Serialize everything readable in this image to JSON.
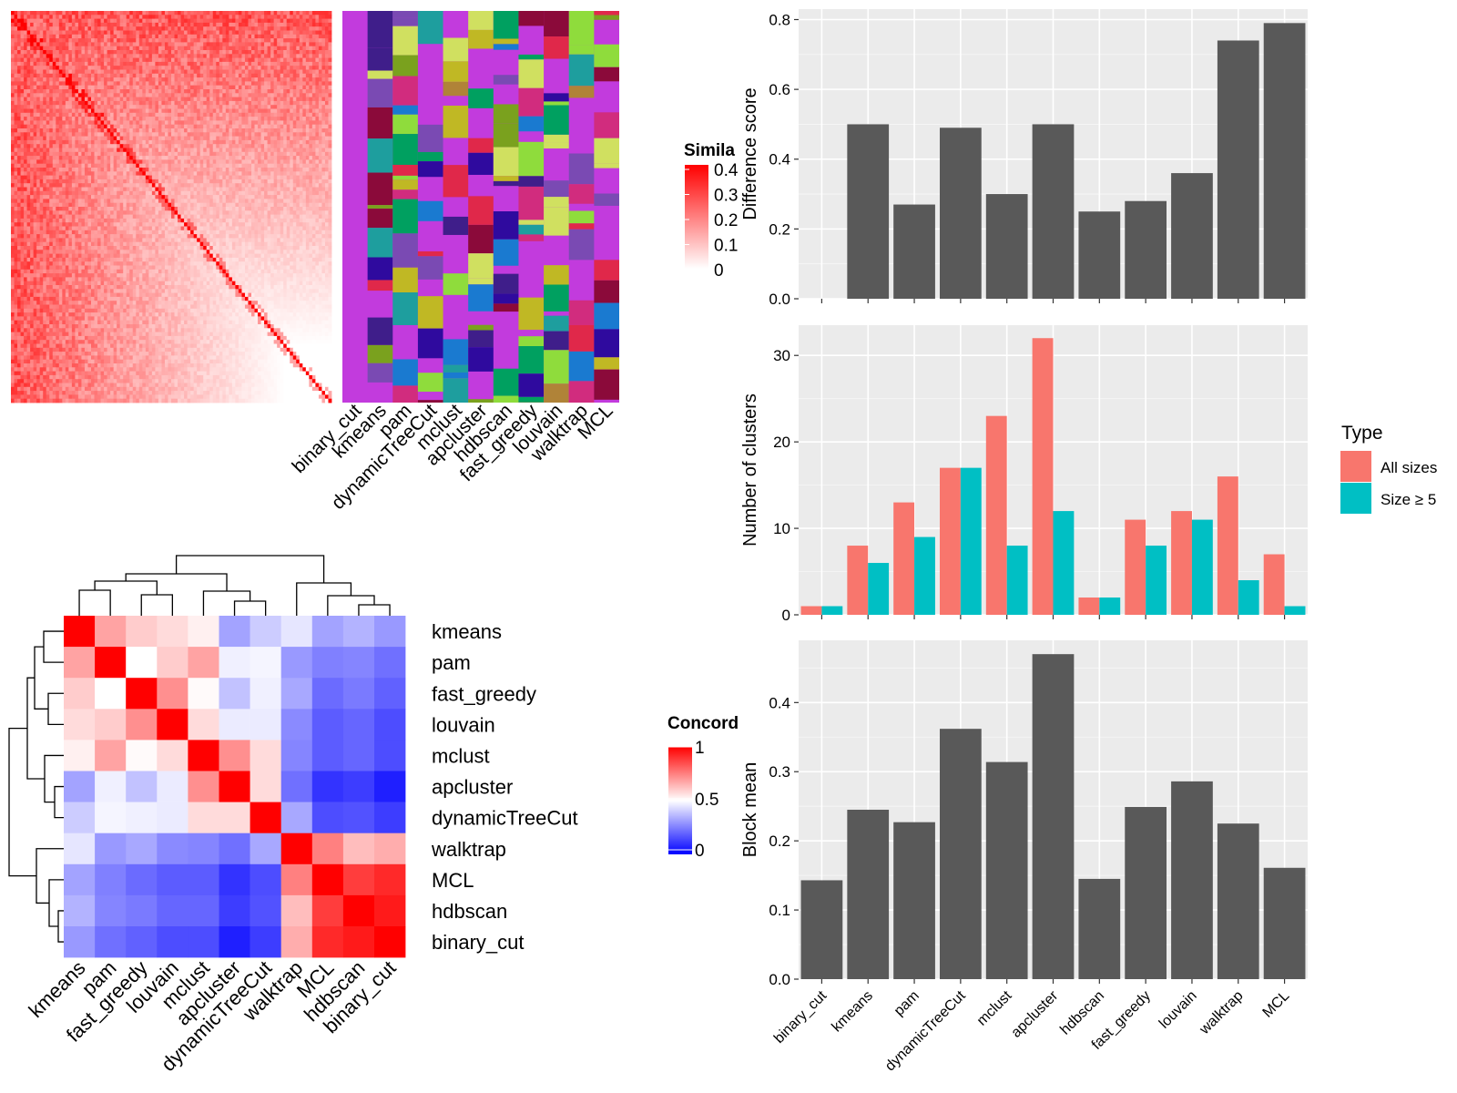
{
  "chart_data": [
    {
      "type": "heatmap",
      "panel": "similarity-heatmap",
      "legend_title": "Simila",
      "legend_ticks": [
        "0.4",
        "0.3",
        "0.2",
        "0.1",
        "0"
      ],
      "colors": {
        "low": "#ffffff",
        "high": "#ff0000"
      }
    },
    {
      "type": "heatmap",
      "panel": "cluster-membership-columns",
      "columns": [
        "binary_cut",
        "kmeans",
        "pam",
        "dynamicTreeCut",
        "mclust",
        "apcluster",
        "hdbscan",
        "fast_greedy",
        "louvain",
        "walktrap",
        "MCL"
      ],
      "background_color": "#c23bdd"
    },
    {
      "type": "heatmap",
      "panel": "concordance-heatmap",
      "legend_title": "Concord",
      "legend_ticks": [
        "1",
        "0.5",
        "0"
      ],
      "colors": {
        "low": "#0000ff",
        "mid": "#ffffff",
        "high": "#ff0000"
      },
      "rows": [
        "kmeans",
        "pam",
        "fast_greedy",
        "louvain",
        "mclust",
        "apcluster",
        "dynamicTreeCut",
        "walktrap",
        "MCL",
        "hdbscan",
        "binary_cut"
      ],
      "columns": [
        "kmeans",
        "pam",
        "fast_greedy",
        "louvain",
        "mclust",
        "apcluster",
        "dynamicTreeCut",
        "walktrap",
        "MCL",
        "hdbscan",
        "binary_cut"
      ],
      "values": [
        [
          1.0,
          0.68,
          0.6,
          0.57,
          0.53,
          0.32,
          0.4,
          0.45,
          0.32,
          0.35,
          0.3
        ],
        [
          0.68,
          1.0,
          0.5,
          0.6,
          0.68,
          0.47,
          0.48,
          0.3,
          0.25,
          0.26,
          0.22
        ],
        [
          0.6,
          0.5,
          1.0,
          0.72,
          0.51,
          0.38,
          0.47,
          0.33,
          0.21,
          0.24,
          0.19
        ],
        [
          0.57,
          0.6,
          0.72,
          1.0,
          0.57,
          0.46,
          0.46,
          0.27,
          0.18,
          0.2,
          0.15
        ],
        [
          0.53,
          0.68,
          0.51,
          0.57,
          1.0,
          0.72,
          0.57,
          0.26,
          0.18,
          0.2,
          0.15
        ],
        [
          0.32,
          0.47,
          0.38,
          0.46,
          0.72,
          1.0,
          0.57,
          0.22,
          0.1,
          0.12,
          0.06
        ],
        [
          0.4,
          0.48,
          0.47,
          0.46,
          0.57,
          0.57,
          1.0,
          0.33,
          0.15,
          0.16,
          0.12
        ],
        [
          0.45,
          0.3,
          0.33,
          0.27,
          0.26,
          0.22,
          0.33,
          1.0,
          0.75,
          0.63,
          0.66
        ],
        [
          0.32,
          0.25,
          0.21,
          0.18,
          0.18,
          0.1,
          0.15,
          0.75,
          1.0,
          0.88,
          0.92
        ],
        [
          0.35,
          0.26,
          0.24,
          0.2,
          0.2,
          0.12,
          0.16,
          0.63,
          0.88,
          1.0,
          0.95
        ],
        [
          0.3,
          0.22,
          0.19,
          0.15,
          0.15,
          0.06,
          0.12,
          0.66,
          0.92,
          0.95,
          1.0
        ]
      ]
    },
    {
      "type": "bar",
      "panel": "difference-score",
      "categories": [
        "binary_cut",
        "kmeans",
        "pam",
        "dynamicTreeCut",
        "mclust",
        "apcluster",
        "hdbscan",
        "fast_greedy",
        "louvain",
        "walktrap",
        "MCL"
      ],
      "values": [
        0,
        0.5,
        0.27,
        0.49,
        0.3,
        0.5,
        0.25,
        0.28,
        0.36,
        0.74,
        0.79
      ],
      "ylabel": "Difference score",
      "ylim": [
        0,
        0.83
      ],
      "yticks": [
        "0.0",
        "0.2",
        "0.4",
        "0.6",
        "0.8"
      ],
      "bar_color": "#595959",
      "grid": true
    },
    {
      "type": "bar",
      "panel": "number-of-clusters",
      "categories": [
        "binary_cut",
        "kmeans",
        "pam",
        "dynamicTreeCut",
        "mclust",
        "apcluster",
        "hdbscan",
        "fast_greedy",
        "louvain",
        "walktrap",
        "MCL"
      ],
      "series": [
        {
          "name": "All sizes",
          "color": "#f8766d",
          "values": [
            1,
            8,
            13,
            17,
            23,
            32,
            2,
            11,
            12,
            16,
            7
          ]
        },
        {
          "name": "Size ≥ 5",
          "color": "#00bfc4",
          "values": [
            1,
            6,
            9,
            17,
            8,
            12,
            2,
            8,
            11,
            4,
            1
          ]
        }
      ],
      "ylabel": "Number of clusters",
      "ylim": [
        0,
        33.5
      ],
      "yticks": [
        "0",
        "10",
        "20",
        "30"
      ],
      "legend": {
        "title": "Type",
        "position": "right"
      },
      "grid": true
    },
    {
      "type": "bar",
      "panel": "block-mean",
      "categories": [
        "binary_cut",
        "kmeans",
        "pam",
        "dynamicTreeCut",
        "mclust",
        "apcluster",
        "hdbscan",
        "fast_greedy",
        "louvain",
        "walktrap",
        "MCL"
      ],
      "values": [
        0.143,
        0.245,
        0.227,
        0.362,
        0.314,
        0.47,
        0.145,
        0.249,
        0.286,
        0.225,
        0.161
      ],
      "ylabel": "Block mean",
      "ylim": [
        0,
        0.49
      ],
      "yticks": [
        "0.0",
        "0.1",
        "0.2",
        "0.3",
        "0.4"
      ],
      "bar_color": "#595959",
      "grid": true
    }
  ]
}
